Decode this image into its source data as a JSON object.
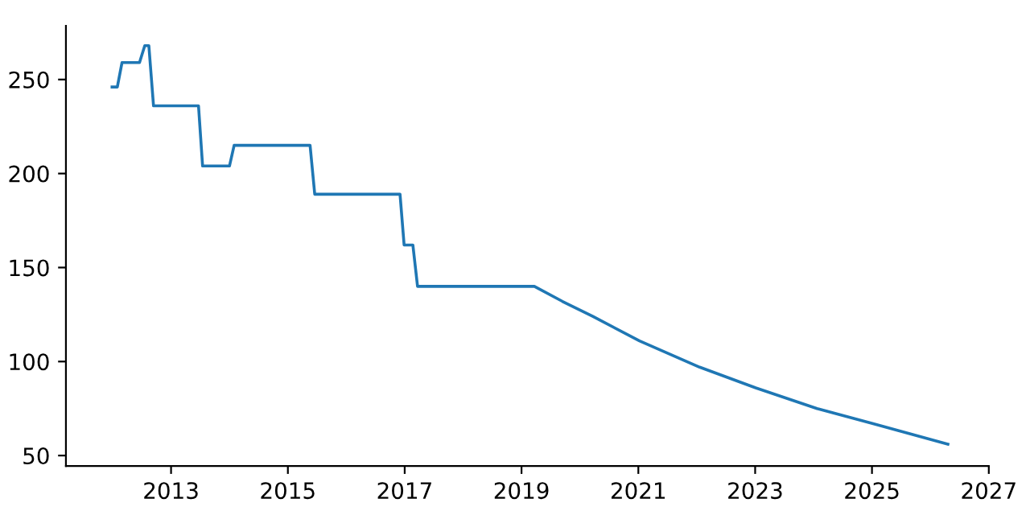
{
  "chart_data": {
    "type": "line",
    "x": [
      2011.99,
      2012.08,
      2012.16,
      2012.46,
      2012.55,
      2012.62,
      2012.7,
      2013.47,
      2013.54,
      2014.0,
      2014.08,
      2015.38,
      2015.46,
      2016.92,
      2016.99,
      2017.14,
      2017.22,
      2019.22,
      2019.7,
      2020.22,
      2021.02,
      2022.05,
      2023.01,
      2024.06,
      2025.02,
      2026.3
    ],
    "series": [
      {
        "color": "#1f77b4",
        "values": [
          246,
          246,
          259,
          259,
          268,
          268,
          236,
          236,
          204,
          204,
          215,
          215,
          189,
          189,
          162,
          162,
          140,
          140,
          132,
          124,
          111,
          97,
          86,
          75,
          67,
          56
        ]
      }
    ],
    "xlim": [
      2011.2,
      2027.0
    ],
    "ylim": [
      44.4,
      278.6
    ],
    "xticks": [
      2013,
      2015,
      2017,
      2019,
      2021,
      2023,
      2025,
      2027
    ],
    "yticks": [
      50,
      100,
      150,
      200,
      250
    ],
    "grid": false
  }
}
